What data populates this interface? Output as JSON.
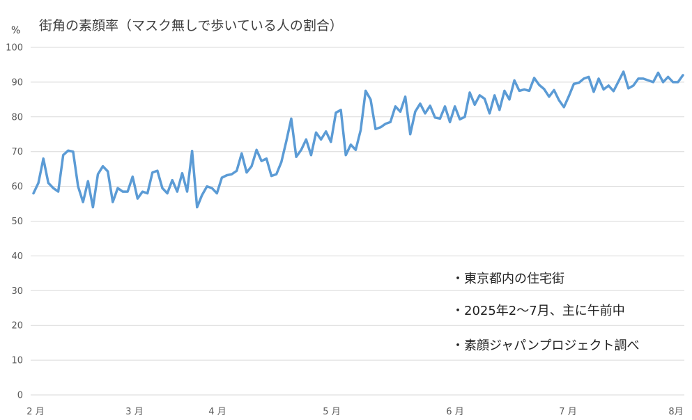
{
  "chart_data": {
    "type": "line",
    "title": "街角の素顔率（マスク無しで歩いている人の割合）",
    "ylabel": "%",
    "xlabel": "",
    "ylim": [
      0,
      100
    ],
    "yticks": [
      0,
      10,
      20,
      30,
      40,
      50,
      60,
      70,
      80,
      90,
      100
    ],
    "x_tick_labels": [
      "2 月",
      "3 月",
      "4 月",
      "5 月",
      "6 月",
      "7 月",
      "8月"
    ],
    "grid": true,
    "legend": "none",
    "color": "#5b9bd5",
    "series": [
      {
        "values": [
          58,
          61,
          68,
          61,
          59.5,
          58.5,
          69,
          70.3,
          70,
          60,
          55.5,
          61.5,
          54,
          63.5,
          65.8,
          64.3,
          55.5,
          59.5,
          58.5,
          58.5,
          62.8,
          56.5,
          58.5,
          58,
          64,
          64.5,
          59.5,
          58,
          61.8,
          58.5,
          63.8,
          58.5,
          70.2,
          54,
          57.5,
          60,
          59.5,
          58,
          62.5,
          63.2,
          63.5,
          64.5,
          69.5,
          64,
          65.8,
          70.5,
          67.3,
          68,
          63,
          63.5,
          67,
          73,
          79.5,
          68.5,
          70.5,
          73.5,
          69,
          75.5,
          73.5,
          75.8,
          72.8,
          81.2,
          82,
          69,
          72,
          70.5,
          76.2,
          87.5,
          85,
          76.5,
          77,
          78,
          78.5,
          83,
          81.5,
          85.8,
          75,
          81.5,
          83.8,
          81,
          83.2,
          79.8,
          79.5,
          83,
          78.5,
          83,
          79.3,
          80,
          87,
          83.5,
          86.2,
          85.2,
          81,
          86.2,
          82,
          87.5,
          85,
          90.5,
          87.5,
          87.9,
          87.5,
          91.2,
          89.2,
          88,
          85.8,
          87.7,
          84.8,
          82.8,
          86,
          89.5,
          89.8,
          91,
          91.5,
          87.2,
          91,
          87.9,
          89,
          87.4,
          90.2,
          93,
          88.2,
          89,
          91,
          91,
          90.5,
          90,
          92.7,
          90,
          91.5,
          90,
          90,
          92
        ]
      }
    ],
    "notes": [
      "・東京都内の住宅街",
      "・2025年2〜7月、主に午前中",
      "・素顔ジャパンプロジェクト調べ"
    ]
  }
}
